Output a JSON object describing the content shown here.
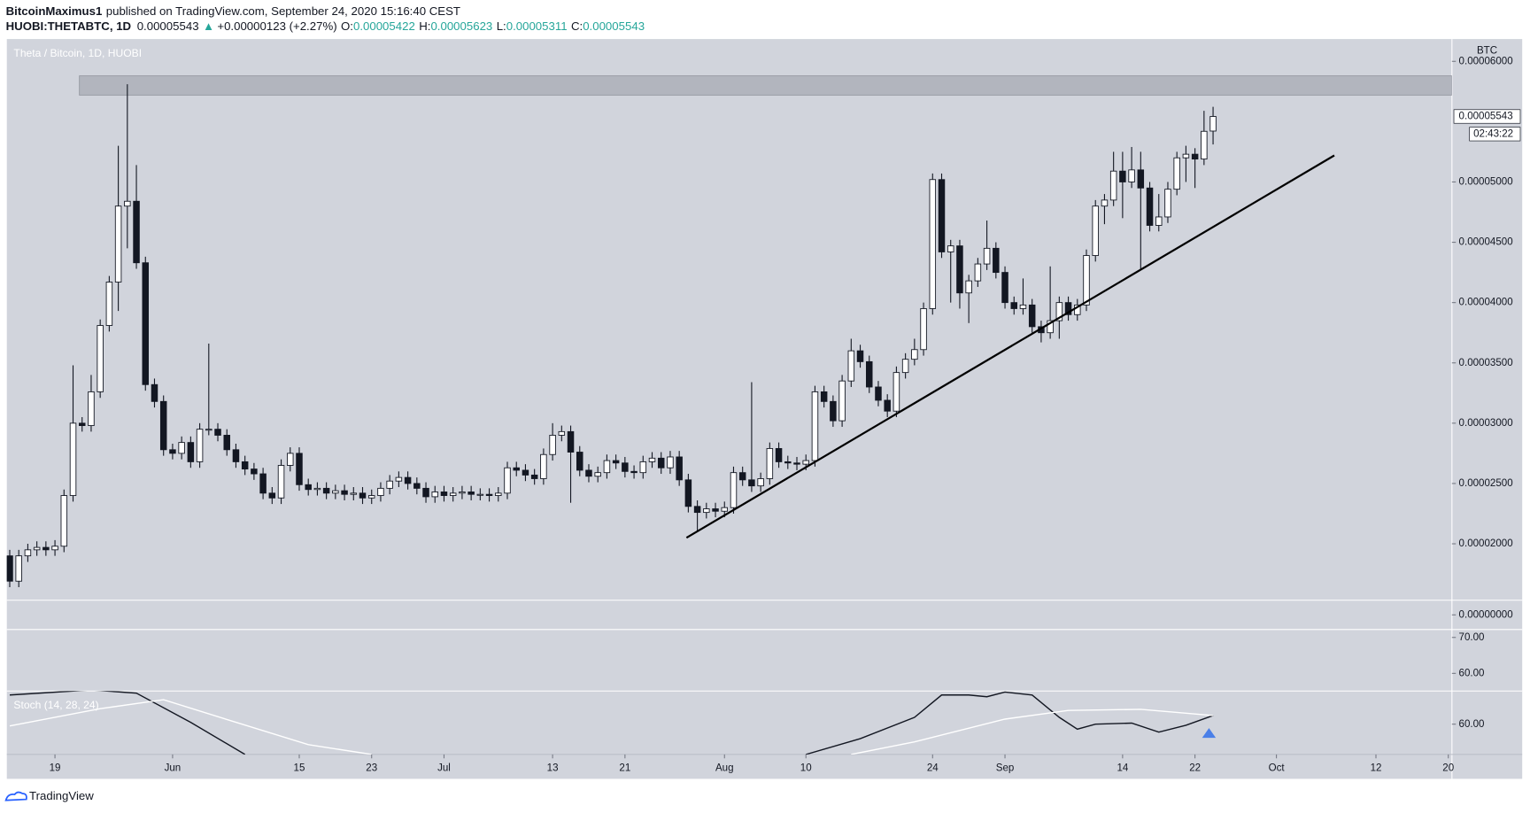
{
  "header": {
    "author": "BitcoinMaximus1",
    "published": "published on TradingView.com, September 24, 2020 15:16:40 CEST",
    "symbol": "HUOBI:THETABTC, 1D",
    "price": "0.00005543",
    "arrow": "▲",
    "change": "+0.00000123 (+2.27%)",
    "ohlc": [
      {
        "label": "O:",
        "value": "0.00005422"
      },
      {
        "label": "H:",
        "value": "0.00005623"
      },
      {
        "label": "L:",
        "value": "0.00005311"
      },
      {
        "label": "C:",
        "value": "0.00005543"
      }
    ]
  },
  "chart_data": {
    "type": "candlestick",
    "legend": "Theta / Bitcoin, 1D, HUOBI",
    "currency": "BTC",
    "up_color": "#ffffff",
    "down_color": "#131722",
    "wick_color": "#131722",
    "grid": false,
    "x": [
      0,
      1,
      2,
      3,
      4,
      5,
      6,
      7,
      8,
      9,
      10,
      11,
      12,
      13,
      14,
      15,
      16,
      17,
      18,
      19,
      20,
      21,
      22,
      23,
      24,
      25,
      26,
      27,
      28,
      29,
      30,
      31,
      32,
      33,
      34,
      35,
      36,
      37,
      38,
      39,
      40,
      41,
      42,
      43,
      44,
      45,
      46,
      47,
      48,
      49,
      50,
      51,
      52,
      53,
      54,
      55,
      56,
      57,
      58,
      59,
      60,
      61,
      62,
      63,
      64,
      65,
      66,
      67,
      68,
      69,
      70,
      71,
      72,
      73,
      74,
      75,
      76,
      77,
      78,
      79,
      80,
      81,
      82,
      83,
      84,
      85,
      86,
      87,
      88,
      89,
      90,
      91,
      92,
      93,
      94,
      95,
      96,
      97,
      98,
      99,
      100,
      101,
      102,
      103,
      104,
      105,
      106,
      107,
      108,
      109,
      110,
      111,
      112,
      113,
      114,
      115,
      116,
      117,
      118,
      119,
      120,
      121,
      122,
      123,
      124,
      125,
      126,
      127,
      128,
      129,
      130,
      131,
      132,
      133
    ],
    "open": [
      1.9e-05,
      1.69e-05,
      1.9e-05,
      1.95e-05,
      1.97e-05,
      1.95e-05,
      1.98e-05,
      2.4e-05,
      3e-05,
      2.98e-05,
      3.26e-05,
      3.81e-05,
      4.17e-05,
      4.8e-05,
      4.84e-05,
      4.33e-05,
      3.32e-05,
      3.18e-05,
      2.78e-05,
      2.75e-05,
      2.84e-05,
      2.68e-05,
      2.95e-05,
      2.95e-05,
      2.9e-05,
      2.78e-05,
      2.68e-05,
      2.62e-05,
      2.58e-05,
      2.42e-05,
      2.38e-05,
      2.65e-05,
      2.75e-05,
      2.49e-05,
      2.45e-05,
      2.46e-05,
      2.42e-05,
      2.44e-05,
      2.41e-05,
      2.42e-05,
      2.38e-05,
      2.4e-05,
      2.46e-05,
      2.52e-05,
      2.55e-05,
      2.5e-05,
      2.46e-05,
      2.39e-05,
      2.43e-05,
      2.4e-05,
      2.42e-05,
      2.43e-05,
      2.41e-05,
      2.41e-05,
      2.4e-05,
      2.42e-05,
      2.63e-05,
      2.61e-05,
      2.57e-05,
      2.54e-05,
      2.74e-05,
      2.9e-05,
      2.93e-05,
      2.76e-05,
      2.61e-05,
      2.56e-05,
      2.59e-05,
      2.69e-05,
      2.67e-05,
      2.6e-05,
      2.59e-05,
      2.68e-05,
      2.71e-05,
      2.63e-05,
      2.72e-05,
      2.53e-05,
      2.31e-05,
      2.26e-05,
      2.29e-05,
      2.27e-05,
      2.3e-05,
      2.59e-05,
      2.53e-05,
      2.48e-05,
      2.54e-05,
      2.79e-05,
      2.68e-05,
      2.67e-05,
      2.66e-05,
      2.69e-05,
      3.26e-05,
      3.18e-05,
      3.02e-05,
      3.35e-05,
      3.6e-05,
      3.51e-05,
      3.3e-05,
      3.19e-05,
      3.1e-05,
      3.42e-05,
      3.53e-05,
      3.61e-05,
      3.95e-05,
      5.02e-05,
      4.42e-05,
      4.47e-05,
      4.08e-05,
      4.18e-05,
      4.32e-05,
      4.45e-05,
      4.25e-05,
      4e-05,
      3.95e-05,
      3.98e-05,
      3.8e-05,
      3.75e-05,
      3.85e-05,
      4e-05,
      3.9e-05,
      3.98e-05,
      4.39e-05,
      4.8e-05,
      4.85e-05,
      5.09e-05,
      5e-05,
      5.1e-05,
      4.95e-05,
      4.64e-05,
      4.71e-05,
      4.94e-05,
      5.2e-05,
      5.23e-05,
      5.19e-05,
      5.422e-05
    ],
    "high": [
      1.95e-05,
      1.95e-05,
      2e-05,
      2.02e-05,
      2.02e-05,
      2.03e-05,
      2.45e-05,
      3.48e-05,
      3.05e-05,
      3.4e-05,
      3.86e-05,
      4.22e-05,
      5.3e-05,
      5.81e-05,
      5.14e-05,
      4.38e-05,
      3.37e-05,
      3.23e-05,
      2.83e-05,
      2.89e-05,
      2.89e-05,
      3e-05,
      3.66e-05,
      3e-05,
      2.95e-05,
      2.83e-05,
      2.73e-05,
      2.67e-05,
      2.63e-05,
      2.47e-05,
      2.7e-05,
      2.8e-05,
      2.8e-05,
      2.54e-05,
      2.51e-05,
      2.51e-05,
      2.49e-05,
      2.49e-05,
      2.47e-05,
      2.47e-05,
      2.45e-05,
      2.51e-05,
      2.57e-05,
      2.6e-05,
      2.6e-05,
      2.55e-05,
      2.51e-05,
      2.48e-05,
      2.48e-05,
      2.47e-05,
      2.48e-05,
      2.48e-05,
      2.46e-05,
      2.46e-05,
      2.47e-05,
      2.68e-05,
      2.68e-05,
      2.66e-05,
      2.62e-05,
      2.79e-05,
      3e-05,
      2.98e-05,
      2.98e-05,
      2.81e-05,
      2.66e-05,
      2.64e-05,
      2.74e-05,
      2.74e-05,
      2.72e-05,
      2.65e-05,
      2.73e-05,
      2.76e-05,
      2.76e-05,
      2.77e-05,
      2.77e-05,
      2.58e-05,
      2.36e-05,
      2.34e-05,
      2.34e-05,
      2.35e-05,
      2.64e-05,
      2.64e-05,
      3.34e-05,
      2.59e-05,
      2.84e-05,
      2.84e-05,
      2.73e-05,
      2.72e-05,
      2.74e-05,
      3.31e-05,
      3.31e-05,
      3.23e-05,
      3.4e-05,
      3.7e-05,
      3.65e-05,
      3.56e-05,
      3.35e-05,
      3.24e-05,
      3.47e-05,
      3.58e-05,
      3.7e-05,
      4e-05,
      5.07e-05,
      5.07e-05,
      4.52e-05,
      4.52e-05,
      4.23e-05,
      4.37e-05,
      4.68e-05,
      4.5e-05,
      4.3e-05,
      4.05e-05,
      4.2e-05,
      4.03e-05,
      3.85e-05,
      4.3e-05,
      4.05e-05,
      4.05e-05,
      4.03e-05,
      4.44e-05,
      4.85e-05,
      4.9e-05,
      5.25e-05,
      5.25e-05,
      5.29e-05,
      5.25e-05,
      5e-05,
      4.9e-05,
      5e-05,
      5.25e-05,
      5.3e-05,
      5.28e-05,
      5.59e-05,
      5.623e-05
    ],
    "low": [
      1.64e-05,
      1.64e-05,
      1.85e-05,
      1.9e-05,
      1.9e-05,
      1.9e-05,
      1.93e-05,
      2.35e-05,
      2.93e-05,
      2.93e-05,
      3.21e-05,
      3.76e-05,
      3.93e-05,
      4.45e-05,
      4.28e-05,
      3.27e-05,
      3.13e-05,
      2.73e-05,
      2.7e-05,
      2.7e-05,
      2.63e-05,
      2.63e-05,
      2.9e-05,
      2.85e-05,
      2.73e-05,
      2.63e-05,
      2.57e-05,
      2.53e-05,
      2.37e-05,
      2.33e-05,
      2.33e-05,
      2.6e-05,
      2.44e-05,
      2.4e-05,
      2.4e-05,
      2.37e-05,
      2.37e-05,
      2.36e-05,
      2.36e-05,
      2.33e-05,
      2.33e-05,
      2.35e-05,
      2.41e-05,
      2.47e-05,
      2.45e-05,
      2.41e-05,
      2.34e-05,
      2.34e-05,
      2.35e-05,
      2.35e-05,
      2.37e-05,
      2.36e-05,
      2.36e-05,
      2.35e-05,
      2.35e-05,
      2.37e-05,
      2.56e-05,
      2.52e-05,
      2.49e-05,
      2.49e-05,
      2.69e-05,
      2.85e-05,
      2.34e-05,
      2.56e-05,
      2.51e-05,
      2.51e-05,
      2.54e-05,
      2.62e-05,
      2.55e-05,
      2.54e-05,
      2.54e-05,
      2.63e-05,
      2.58e-05,
      2.58e-05,
      2.48e-05,
      2.26e-05,
      2.1e-05,
      2.21e-05,
      2.22e-05,
      2.22e-05,
      2.25e-05,
      2.48e-05,
      2.43e-05,
      2.43e-05,
      2.49e-05,
      2.63e-05,
      2.62e-05,
      2.61e-05,
      2.61e-05,
      2.64e-05,
      3.13e-05,
      2.97e-05,
      2.97e-05,
      3.3e-05,
      3.46e-05,
      3.25e-05,
      3.14e-05,
      3.05e-05,
      3.05e-05,
      3.37e-05,
      3.48e-05,
      3.56e-05,
      3.9e-05,
      4.37e-05,
      4e-05,
      3.95e-05,
      3.83e-05,
      4.13e-05,
      4.27e-05,
      4.2e-05,
      3.95e-05,
      3.9e-05,
      3.9e-05,
      3.75e-05,
      3.67e-05,
      3.7e-05,
      3.7e-05,
      3.85e-05,
      3.85e-05,
      3.93e-05,
      4.34e-05,
      4.65e-05,
      4.8e-05,
      4.7e-05,
      4.95e-05,
      4.27e-05,
      4.59e-05,
      4.59e-05,
      4.66e-05,
      4.89e-05,
      5e-05,
      4.95e-05,
      5.14e-05,
      5.311e-05
    ],
    "close": [
      1.69e-05,
      1.9e-05,
      1.95e-05,
      1.97e-05,
      1.95e-05,
      1.98e-05,
      2.4e-05,
      3e-05,
      2.98e-05,
      3.26e-05,
      3.81e-05,
      4.17e-05,
      4.8e-05,
      4.84e-05,
      4.33e-05,
      3.32e-05,
      3.18e-05,
      2.78e-05,
      2.75e-05,
      2.84e-05,
      2.68e-05,
      2.95e-05,
      2.95e-05,
      2.9e-05,
      2.78e-05,
      2.68e-05,
      2.62e-05,
      2.58e-05,
      2.42e-05,
      2.38e-05,
      2.65e-05,
      2.75e-05,
      2.49e-05,
      2.45e-05,
      2.46e-05,
      2.42e-05,
      2.44e-05,
      2.41e-05,
      2.42e-05,
      2.38e-05,
      2.4e-05,
      2.46e-05,
      2.52e-05,
      2.55e-05,
      2.5e-05,
      2.46e-05,
      2.39e-05,
      2.43e-05,
      2.4e-05,
      2.42e-05,
      2.43e-05,
      2.41e-05,
      2.41e-05,
      2.4e-05,
      2.42e-05,
      2.63e-05,
      2.61e-05,
      2.57e-05,
      2.54e-05,
      2.74e-05,
      2.9e-05,
      2.93e-05,
      2.76e-05,
      2.61e-05,
      2.56e-05,
      2.59e-05,
      2.69e-05,
      2.67e-05,
      2.6e-05,
      2.59e-05,
      2.68e-05,
      2.71e-05,
      2.63e-05,
      2.72e-05,
      2.53e-05,
      2.31e-05,
      2.26e-05,
      2.29e-05,
      2.27e-05,
      2.3e-05,
      2.59e-05,
      2.53e-05,
      2.48e-05,
      2.54e-05,
      2.79e-05,
      2.68e-05,
      2.67e-05,
      2.66e-05,
      2.69e-05,
      3.26e-05,
      3.18e-05,
      3.02e-05,
      3.35e-05,
      3.6e-05,
      3.51e-05,
      3.3e-05,
      3.19e-05,
      3.1e-05,
      3.42e-05,
      3.53e-05,
      3.61e-05,
      3.95e-05,
      5.02e-05,
      4.42e-05,
      4.47e-05,
      4.08e-05,
      4.18e-05,
      4.32e-05,
      4.45e-05,
      4.25e-05,
      4e-05,
      3.95e-05,
      3.98e-05,
      3.8e-05,
      3.75e-05,
      3.85e-05,
      4e-05,
      3.9e-05,
      3.98e-05,
      4.39e-05,
      4.8e-05,
      4.85e-05,
      5.09e-05,
      5e-05,
      5.1e-05,
      4.95e-05,
      4.64e-05,
      4.71e-05,
      4.94e-05,
      5.2e-05,
      5.23e-05,
      5.19e-05,
      5.42e-05,
      5.543e-05
    ],
    "xlim": [
      -0.32,
      159.4
    ],
    "xticks": [
      {
        "value": 5,
        "label": "19"
      },
      {
        "value": 18,
        "label": "Jun"
      },
      {
        "value": 32,
        "label": "15"
      },
      {
        "value": 40,
        "label": "23"
      },
      {
        "value": 48,
        "label": "Jul"
      },
      {
        "value": 60,
        "label": "13"
      },
      {
        "value": 68,
        "label": "21"
      },
      {
        "value": 79,
        "label": "Aug"
      },
      {
        "value": 88,
        "label": "10"
      },
      {
        "value": 102,
        "label": "24"
      },
      {
        "value": 110,
        "label": "Sep"
      },
      {
        "value": 123,
        "label": "14"
      },
      {
        "value": 131,
        "label": "22"
      },
      {
        "value": 140,
        "label": "Oct"
      },
      {
        "value": 151,
        "label": "12"
      },
      {
        "value": 159,
        "label": "20"
      }
    ],
    "ylim": [
      1.532e-05,
      6.185e-05
    ],
    "yticks": [
      {
        "value": 2e-05,
        "label": "0.00002000"
      },
      {
        "value": 2.5e-05,
        "label": "0.00002500"
      },
      {
        "value": 3e-05,
        "label": "0.00003000"
      },
      {
        "value": 3.5e-05,
        "label": "0.00003500"
      },
      {
        "value": 4e-05,
        "label": "0.00004000"
      },
      {
        "value": 4.5e-05,
        "label": "0.00004500"
      },
      {
        "value": 5e-05,
        "label": "0.00005000"
      },
      {
        "value": 6e-05,
        "label": "0.00006000"
      }
    ],
    "last_price_label": "0.00005543",
    "countdown": "02:43:22",
    "zone": {
      "from": 5.72e-05,
      "to": 5.88e-05,
      "x_start": 7.7,
      "color": "#b2b5be"
    },
    "trendline": {
      "x": [
        74.8,
        146.4
      ],
      "values": [
        2.05e-05,
        5.22e-05
      ],
      "color": "#000000"
    },
    "volume_pane": {
      "ylim": [
        -1,
        1
      ],
      "yticks": [
        {
          "value": 0,
          "label": "0.00000000"
        }
      ]
    },
    "pane_a": {
      "ylim": [
        55.1,
        72.2
      ],
      "yticks": [
        {
          "value": 70,
          "label": "70.00"
        },
        {
          "value": 60,
          "label": "60.00"
        }
      ]
    },
    "stoch": {
      "title": "Stoch (14, 28, 24)",
      "ylim": [
        51.6,
        69.2
      ],
      "yticks": [
        {
          "value": 60,
          "label": "60.00"
        }
      ],
      "series": [
        {
          "color": "#131722",
          "x": [
            0,
            9,
            14,
            20,
            26,
            50,
            88,
            94,
            100,
            103,
            106,
            108,
            110,
            113,
            116,
            118,
            120,
            124,
            127,
            130,
            133
          ],
          "values": [
            68.1,
            69.5,
            68.6,
            60.5,
            51.6,
            null,
            51.6,
            56,
            61.9,
            68.1,
            68.1,
            67.6,
            68.9,
            68.1,
            61.9,
            58.6,
            60,
            60.3,
            57.8,
            59.7,
            62.4
          ]
        },
        {
          "color": "#ffffff",
          "x": [
            0,
            10,
            17,
            25,
            33,
            40,
            60,
            93,
            100,
            110,
            117,
            125,
            133
          ],
          "values": [
            59.5,
            64.3,
            66.8,
            60.5,
            54.3,
            51.6,
            null,
            51.6,
            55.1,
            61.4,
            63.8,
            64.1,
            62.4
          ]
        }
      ]
    }
  },
  "footer": {
    "brand": "TradingView"
  }
}
